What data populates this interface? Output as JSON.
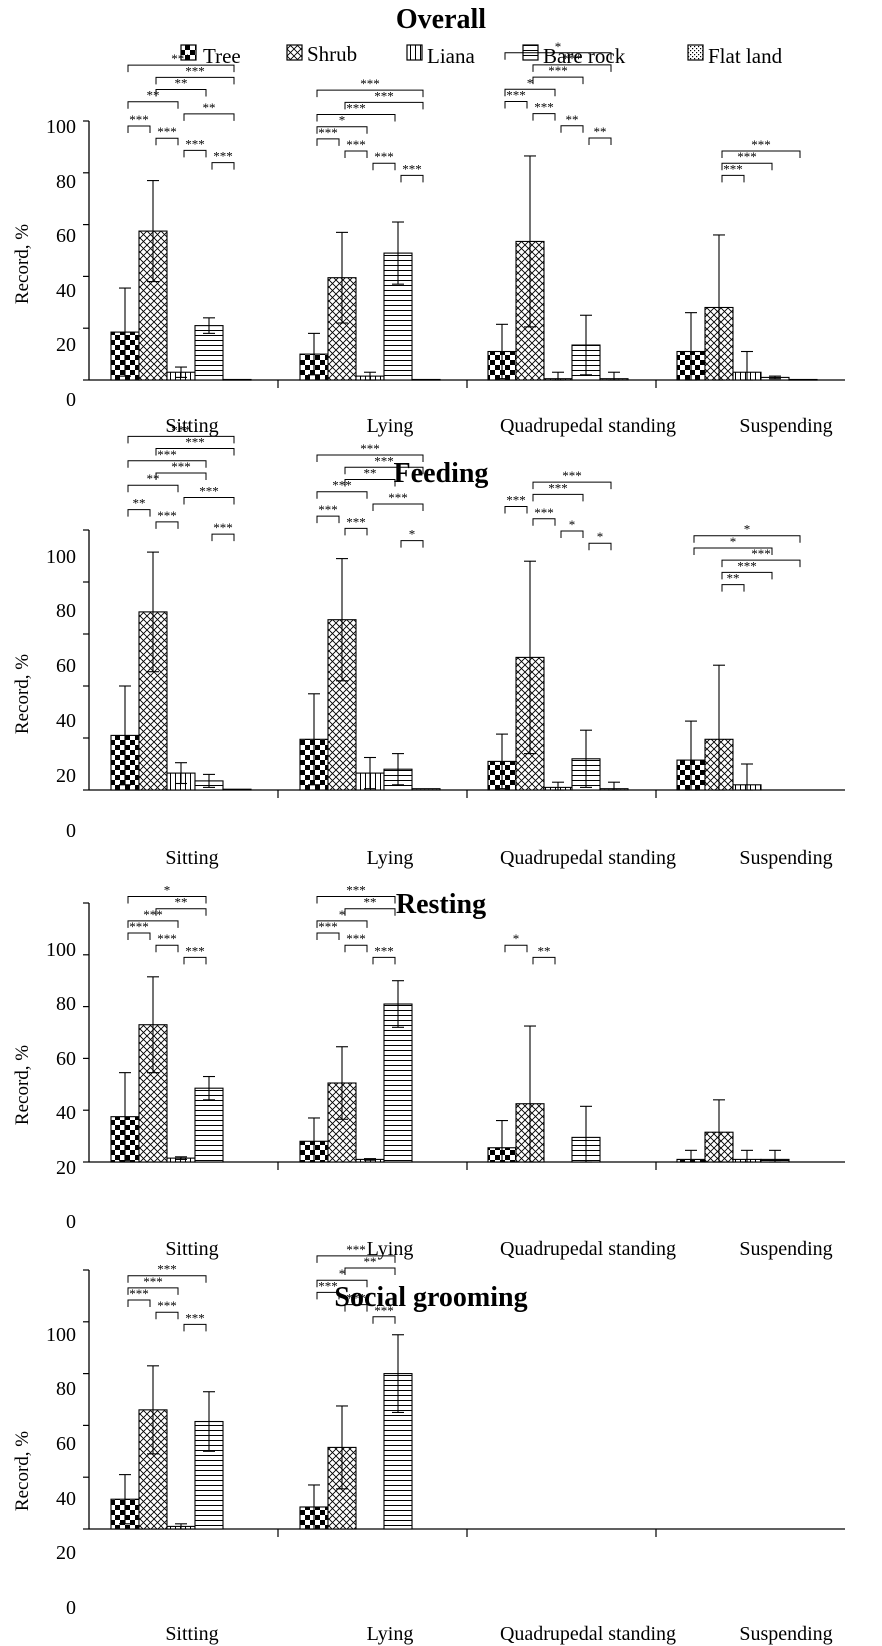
{
  "legend": {
    "entries": [
      "Tree",
      "Shrub",
      "Liana",
      "Bare rock",
      "Flat land"
    ],
    "placement": "top"
  },
  "chart_data": [
    {
      "type": "bar",
      "title": "Overall",
      "ylabel": "Record, %",
      "ylim": [
        0,
        100
      ],
      "yticks": [
        "0",
        "20",
        "40",
        "60",
        "80",
        "100"
      ],
      "categories": [
        "Sitting",
        "Lying",
        "Quadrupedal standing",
        "Suspending"
      ],
      "series": [
        {
          "name": "Tree",
          "values": [
            18.5,
            10,
            11,
            11
          ],
          "errors": [
            17,
            8,
            10.5,
            15
          ]
        },
        {
          "name": "Shrub",
          "values": [
            57.5,
            39.5,
            53.5,
            28
          ],
          "errors": [
            19.5,
            17.5,
            33,
            28
          ]
        },
        {
          "name": "Liana",
          "values": [
            3,
            1.5,
            0.5,
            3
          ],
          "errors": [
            2,
            1.5,
            2.5,
            8
          ]
        },
        {
          "name": "Bare rock",
          "values": [
            21,
            49,
            13.5,
            1
          ],
          "errors": [
            3,
            12,
            11.5,
            0.5
          ]
        },
        {
          "name": "Flat land",
          "values": [
            0.2,
            0.2,
            0.5,
            0.2
          ],
          "errors": [
            0,
            0,
            2.5,
            0
          ]
        }
      ],
      "significance": [
        [
          {
            "from": 0,
            "to": 4,
            "label": "***"
          },
          {
            "from": 1,
            "to": 4,
            "label": "***"
          },
          {
            "from": 1,
            "to": 3,
            "label": "**"
          },
          {
            "from": 0,
            "to": 2,
            "label": "**"
          },
          {
            "from": 2,
            "to": 4,
            "label": "**"
          },
          {
            "from": 0,
            "to": 1,
            "label": "***"
          },
          {
            "from": 1,
            "to": 2,
            "label": "***"
          },
          {
            "from": 2,
            "to": 3,
            "label": "***"
          },
          {
            "from": 3,
            "to": 4,
            "label": "***"
          }
        ],
        [
          {
            "from": 0,
            "to": 4,
            "label": "***"
          },
          {
            "from": 1,
            "to": 4,
            "label": "***"
          },
          {
            "from": 0,
            "to": 3,
            "label": "***"
          },
          {
            "from": 0,
            "to": 2,
            "label": "*"
          },
          {
            "from": 0,
            "to": 1,
            "label": "***"
          },
          {
            "from": 1,
            "to": 2,
            "label": "***"
          },
          {
            "from": 2,
            "to": 3,
            "label": "***"
          },
          {
            "from": 3,
            "to": 4,
            "label": "***"
          }
        ],
        [
          {
            "from": 0,
            "to": 4,
            "label": "*"
          },
          {
            "from": 1,
            "to": 4,
            "label": "***"
          },
          {
            "from": 1,
            "to": 3,
            "label": "***"
          },
          {
            "from": 0,
            "to": 2,
            "label": "*"
          },
          {
            "from": 0,
            "to": 1,
            "label": "***"
          },
          {
            "from": 1,
            "to": 2,
            "label": "***"
          },
          {
            "from": 2,
            "to": 3,
            "label": "**"
          },
          {
            "from": 3,
            "to": 4,
            "label": "**"
          }
        ],
        [
          {
            "from": 1,
            "to": 4,
            "label": "***"
          },
          {
            "from": 1,
            "to": 3,
            "label": "***"
          },
          {
            "from": 1,
            "to": 2,
            "label": "***"
          }
        ]
      ]
    },
    {
      "type": "bar",
      "title": "Feeding",
      "ylabel": "Record, %",
      "ylim": [
        0,
        100
      ],
      "yticks": [
        "0",
        "20",
        "40",
        "60",
        "80",
        "100"
      ],
      "categories": [
        "Sitting",
        "Lying",
        "Quadrupedal standing",
        "Suspending"
      ],
      "series": [
        {
          "name": "Tree",
          "values": [
            21,
            19.5,
            11,
            11.5
          ],
          "errors": [
            19,
            17.5,
            10.5,
            15
          ]
        },
        {
          "name": "Shrub",
          "values": [
            68.5,
            65.5,
            51,
            19.5
          ],
          "errors": [
            23,
            23.5,
            37,
            28.5
          ]
        },
        {
          "name": "Liana",
          "values": [
            6.5,
            6.5,
            1,
            2
          ],
          "errors": [
            4,
            6,
            2,
            8
          ]
        },
        {
          "name": "Bare rock",
          "values": [
            3.5,
            8,
            12,
            0
          ],
          "errors": [
            2.5,
            6,
            11,
            0
          ]
        },
        {
          "name": "Flat land",
          "values": [
            0.3,
            0.5,
            0.5,
            0
          ],
          "errors": [
            0,
            0,
            2.5,
            0
          ]
        }
      ],
      "significance": [
        [
          {
            "from": 0,
            "to": 4,
            "label": "***"
          },
          {
            "from": 1,
            "to": 4,
            "label": "***"
          },
          {
            "from": 0,
            "to": 3,
            "label": "***"
          },
          {
            "from": 1,
            "to": 3,
            "label": "***"
          },
          {
            "from": 0,
            "to": 2,
            "label": "**"
          },
          {
            "from": 2,
            "to": 4,
            "label": "***"
          },
          {
            "from": 0,
            "to": 1,
            "label": "**"
          },
          {
            "from": 1,
            "to": 2,
            "label": "***"
          },
          {
            "from": 3,
            "to": 4,
            "label": "***"
          }
        ],
        [
          {
            "from": 0,
            "to": 4,
            "label": "***"
          },
          {
            "from": 1,
            "to": 4,
            "label": "***"
          },
          {
            "from": 1,
            "to": 3,
            "label": "**"
          },
          {
            "from": 0,
            "to": 2,
            "label": "***"
          },
          {
            "from": 2,
            "to": 4,
            "label": "***"
          },
          {
            "from": 0,
            "to": 1,
            "label": "***"
          },
          {
            "from": 1,
            "to": 2,
            "label": "***"
          },
          {
            "from": 3,
            "to": 4,
            "label": "*"
          }
        ],
        [
          {
            "from": 1,
            "to": 4,
            "label": "***"
          },
          {
            "from": 1,
            "to": 3,
            "label": "***"
          },
          {
            "from": 0,
            "to": 1,
            "label": "***"
          },
          {
            "from": 1,
            "to": 2,
            "label": "***"
          },
          {
            "from": 2,
            "to": 3,
            "label": "*"
          },
          {
            "from": 3,
            "to": 4,
            "label": "*"
          }
        ],
        [
          {
            "from": 0,
            "to": 4,
            "label": "*"
          },
          {
            "from": 0,
            "to": 3,
            "label": "*"
          },
          {
            "from": 1,
            "to": 4,
            "label": "***"
          },
          {
            "from": 1,
            "to": 3,
            "label": "***"
          },
          {
            "from": 1,
            "to": 2,
            "label": "**"
          }
        ]
      ]
    },
    {
      "type": "bar",
      "title": "Resting",
      "ylabel": "Record, %",
      "ylim": [
        0,
        100
      ],
      "yticks": [
        "0",
        "20",
        "40",
        "60",
        "80",
        "100"
      ],
      "categories": [
        "Sitting",
        "Lying",
        "Quadrupedal standing",
        "Suspending"
      ],
      "series": [
        {
          "name": "Tree",
          "values": [
            17.5,
            8,
            5.5,
            1
          ],
          "errors": [
            17,
            9,
            10.5,
            3.5
          ]
        },
        {
          "name": "Shrub",
          "values": [
            53,
            30.5,
            22.5,
            11.5
          ],
          "errors": [
            18.5,
            14,
            30,
            12.5
          ]
        },
        {
          "name": "Liana",
          "values": [
            1.5,
            1,
            0,
            1
          ],
          "errors": [
            0.5,
            0.3,
            0,
            3.5
          ]
        },
        {
          "name": "Bare rock",
          "values": [
            28.5,
            61,
            9.5,
            1
          ],
          "errors": [
            4.5,
            9,
            12,
            3.5
          ]
        },
        {
          "name": "Flat land",
          "values": [
            0,
            0,
            0,
            0
          ],
          "errors": [
            0,
            0,
            0,
            0
          ]
        }
      ],
      "significance": [
        [
          {
            "from": 0,
            "to": 3,
            "label": "*"
          },
          {
            "from": 1,
            "to": 3,
            "label": "**"
          },
          {
            "from": 0,
            "to": 2,
            "label": "***"
          },
          {
            "from": 0,
            "to": 1,
            "label": "***"
          },
          {
            "from": 1,
            "to": 2,
            "label": "***"
          },
          {
            "from": 2,
            "to": 3,
            "label": "***"
          }
        ],
        [
          {
            "from": 0,
            "to": 3,
            "label": "***"
          },
          {
            "from": 1,
            "to": 3,
            "label": "**"
          },
          {
            "from": 0,
            "to": 2,
            "label": "*"
          },
          {
            "from": 0,
            "to": 1,
            "label": "***"
          },
          {
            "from": 1,
            "to": 2,
            "label": "***"
          },
          {
            "from": 2,
            "to": 3,
            "label": "***"
          }
        ],
        [
          {
            "from": 0,
            "to": 1,
            "label": "*"
          },
          {
            "from": 1,
            "to": 2,
            "label": "**"
          }
        ],
        []
      ]
    },
    {
      "type": "bar",
      "title": "Social grooming",
      "ylabel": "Record, %",
      "ylim": [
        0,
        100
      ],
      "yticks": [
        "0",
        "20",
        "40",
        "60",
        "80",
        "100"
      ],
      "categories": [
        "Sitting",
        "Lying",
        "Quadrupedal standing",
        "Suspending"
      ],
      "series": [
        {
          "name": "Tree",
          "values": [
            11.5,
            8.5,
            0,
            0
          ],
          "errors": [
            9.5,
            8.5,
            0,
            0
          ]
        },
        {
          "name": "Shrub",
          "values": [
            46,
            31.5,
            0,
            0
          ],
          "errors": [
            17,
            16,
            0,
            0
          ]
        },
        {
          "name": "Liana",
          "values": [
            1,
            0,
            0,
            0
          ],
          "errors": [
            1,
            0,
            0,
            0
          ]
        },
        {
          "name": "Bare rock",
          "values": [
            41.5,
            60,
            0,
            0
          ],
          "errors": [
            11.5,
            15,
            0,
            0
          ]
        },
        {
          "name": "Flat land",
          "values": [
            0,
            0,
            0,
            0
          ],
          "errors": [
            0,
            0,
            0,
            0
          ]
        }
      ],
      "significance": [
        [
          {
            "from": 0,
            "to": 3,
            "label": "***"
          },
          {
            "from": 0,
            "to": 2,
            "label": "***"
          },
          {
            "from": 0,
            "to": 1,
            "label": "***"
          },
          {
            "from": 1,
            "to": 2,
            "label": "***"
          },
          {
            "from": 2,
            "to": 3,
            "label": "***"
          }
        ],
        [
          {
            "from": 0,
            "to": 3,
            "label": "***"
          },
          {
            "from": 1,
            "to": 3,
            "label": "**"
          },
          {
            "from": 0,
            "to": 2,
            "label": "*"
          },
          {
            "from": 0,
            "to": 1,
            "label": "***"
          },
          {
            "from": 1,
            "to": 2,
            "label": "***"
          },
          {
            "from": 2,
            "to": 3,
            "label": "***"
          }
        ],
        [],
        []
      ]
    }
  ]
}
